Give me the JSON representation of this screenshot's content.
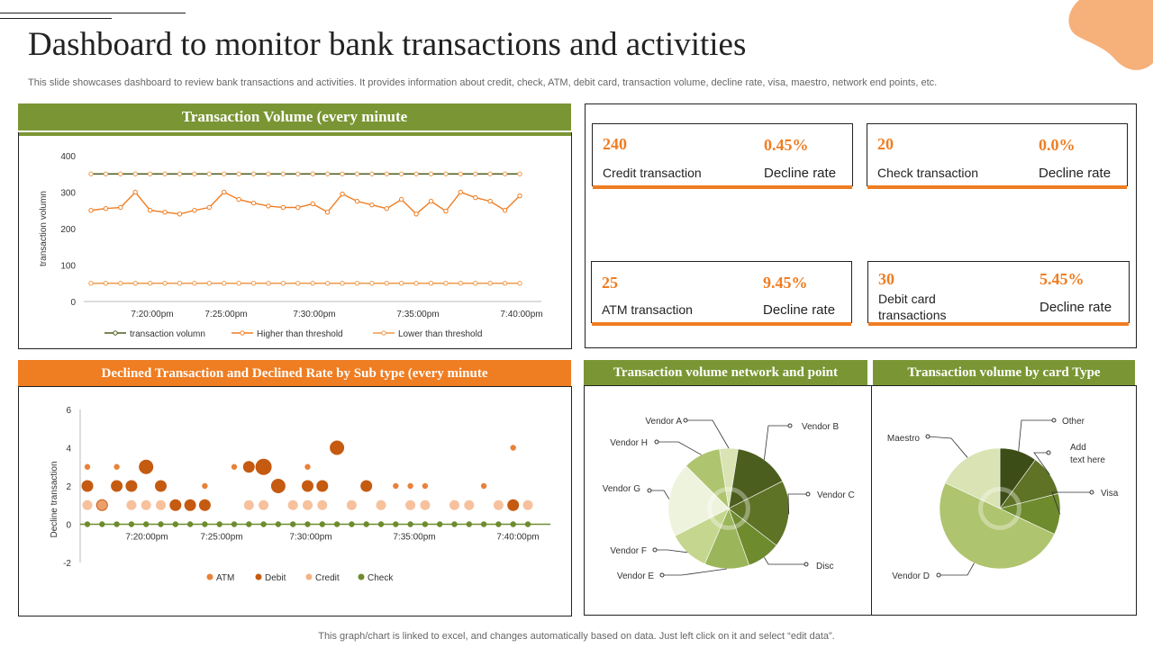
{
  "page": {
    "title": "Dashboard to monitor bank transactions and activities",
    "subtitle": "This slide showcases dashboard to review bank transactions and activities. It provides information about credit, check, ATM,  debit card, transaction volume,  decline rate, visa, maestro, network end points, etc.",
    "footer": "This graph/chart is linked to excel,  and changes automatically based on data. Just left click on it and select “edit data”."
  },
  "colors": {
    "accent_green": "#7a9634",
    "accent_orange": "#ef7d22",
    "dark_green": "#4b5e1e",
    "light_green": "#c5d68f"
  },
  "panels": {
    "volume_title": "Transaction Volume (every minute",
    "declined_title": "Declined Transaction and Declined Rate by Sub type (every minute",
    "network_title": "Transaction volume network and point",
    "card_title": "Transaction volume by card Type"
  },
  "kpis": [
    {
      "value": "240",
      "label": "Credit transaction",
      "rate": "0.45%",
      "rate_label": "Decline rate"
    },
    {
      "value": "20",
      "label": "Check transaction",
      "rate": "0.0%",
      "rate_label": "Decline rate"
    },
    {
      "value": "25",
      "label": "ATM transaction",
      "rate": "9.45%",
      "rate_label": "Decline rate"
    },
    {
      "value": "30",
      "label": "Debit card transactions",
      "rate": "5.45%",
      "rate_label": "Decline rate"
    }
  ],
  "chart_data": [
    {
      "type": "line",
      "ylabel": "transaction volumn",
      "ylim": [
        0,
        400
      ],
      "yticks": [
        0,
        100,
        200,
        300,
        400
      ],
      "xticks": [
        "7:20:00pm",
        "7:25:00pm",
        "7:30:00pm",
        "7:35:00pm",
        "7:40:00pm"
      ],
      "series": [
        {
          "name": "transaction volumn",
          "color": "#4b5e1e",
          "values": [
            350,
            350,
            350,
            350,
            350,
            350,
            350,
            350,
            350,
            350,
            350,
            350,
            350,
            350,
            350,
            350,
            350,
            350,
            350,
            350,
            350,
            350,
            350,
            350,
            350,
            350,
            350,
            350,
            350,
            350
          ]
        },
        {
          "name": "Higher than threshold",
          "color": "#ef7d22",
          "values": [
            250,
            255,
            258,
            300,
            250,
            245,
            240,
            250,
            258,
            300,
            280,
            270,
            262,
            258,
            258,
            268,
            245,
            295,
            275,
            265,
            255,
            280,
            240,
            275,
            248,
            300,
            285,
            275,
            250,
            290
          ]
        },
        {
          "name": "Lower than threshold",
          "color": "#ef9a4a",
          "values": [
            50,
            50,
            50,
            50,
            50,
            50,
            50,
            50,
            50,
            50,
            50,
            50,
            50,
            50,
            50,
            50,
            50,
            50,
            50,
            50,
            50,
            50,
            50,
            50,
            50,
            50,
            50,
            50,
            50,
            50
          ]
        }
      ],
      "legend": "bottom"
    },
    {
      "type": "scatter",
      "ylabel": "Decline transaction",
      "ylim": [
        -2,
        6
      ],
      "yticks": [
        -2,
        0,
        2,
        4,
        6
      ],
      "xticks": [
        "7:20:00pm",
        "7:25:00pm",
        "7:30:00pm",
        "7:35:00pm",
        "7:40:00pm"
      ],
      "series": [
        {
          "name": "ATM",
          "color": "#e8823a",
          "points": [
            [
              1,
              3
            ],
            [
              3,
              3
            ],
            [
              4,
              2
            ],
            [
              6,
              2
            ],
            [
              9,
              2
            ],
            [
              11,
              3
            ],
            [
              16,
              3
            ],
            [
              22,
              2
            ],
            [
              23,
              2
            ],
            [
              24,
              2
            ],
            [
              28,
              2
            ],
            [
              30,
              4
            ]
          ]
        },
        {
          "name": "Debit",
          "color": "#c55a11",
          "points": [
            [
              1,
              2
            ],
            [
              2,
              1
            ],
            [
              3,
              2
            ],
            [
              4,
              2
            ],
            [
              5,
              3
            ],
            [
              6,
              2
            ],
            [
              7,
              1
            ],
            [
              8,
              1
            ],
            [
              9,
              1
            ],
            [
              12,
              3
            ],
            [
              13,
              3
            ],
            [
              14,
              2
            ],
            [
              16,
              2
            ],
            [
              17,
              2
            ],
            [
              18,
              4
            ],
            [
              20,
              2
            ],
            [
              30,
              1
            ]
          ]
        },
        {
          "name": "Credit",
          "color": "#f4b183",
          "points": [
            [
              1,
              1
            ],
            [
              2,
              1
            ],
            [
              4,
              1
            ],
            [
              5,
              1
            ],
            [
              6,
              1
            ],
            [
              12,
              1
            ],
            [
              13,
              1
            ],
            [
              15,
              1
            ],
            [
              16,
              1
            ],
            [
              17,
              1
            ],
            [
              19,
              1
            ],
            [
              21,
              1
            ],
            [
              23,
              1
            ],
            [
              24,
              1
            ],
            [
              26,
              1
            ],
            [
              27,
              1
            ],
            [
              29,
              1
            ],
            [
              31,
              1
            ]
          ]
        },
        {
          "name": "Check",
          "color": "#6e8b2e",
          "points": [
            [
              1,
              0
            ],
            [
              2,
              0
            ],
            [
              3,
              0
            ],
            [
              4,
              0
            ],
            [
              5,
              0
            ],
            [
              6,
              0
            ],
            [
              7,
              0
            ],
            [
              8,
              0
            ],
            [
              9,
              0
            ],
            [
              10,
              0
            ],
            [
              11,
              0
            ],
            [
              12,
              0
            ],
            [
              13,
              0
            ],
            [
              14,
              0
            ],
            [
              15,
              0
            ],
            [
              16,
              0
            ],
            [
              17,
              0
            ],
            [
              18,
              0
            ],
            [
              19,
              0
            ],
            [
              20,
              0
            ],
            [
              21,
              0
            ],
            [
              22,
              0
            ],
            [
              23,
              0
            ],
            [
              24,
              0
            ],
            [
              25,
              0
            ],
            [
              26,
              0
            ],
            [
              27,
              0
            ],
            [
              28,
              0
            ],
            [
              29,
              0
            ],
            [
              30,
              0
            ],
            [
              31,
              0
            ]
          ]
        }
      ],
      "legend": "bottom"
    },
    {
      "type": "pie",
      "labels": [
        "Vendor A",
        "Vendor B",
        "Vendor C",
        "Disc",
        "Vendor E",
        "Vendor F",
        "Vendor G",
        "Vendor H"
      ],
      "values": [
        5,
        15,
        18,
        9,
        12,
        11,
        20,
        10
      ],
      "colors": [
        "#d9e3b4",
        "#4b5e1e",
        "#5e7326",
        "#6e8b2e",
        "#9bb55a",
        "#c5d68f",
        "#eef3dd",
        "#afc46e"
      ]
    },
    {
      "type": "pie",
      "labels": [
        "Other",
        "Add text here",
        "Visa",
        "Vendor D",
        "Maestro"
      ],
      "values": [
        10,
        11,
        11,
        50,
        18
      ],
      "colors": [
        "#3d4d17",
        "#5e7326",
        "#6e8b2e",
        "#afc46e",
        "#d9e3b4"
      ]
    }
  ]
}
